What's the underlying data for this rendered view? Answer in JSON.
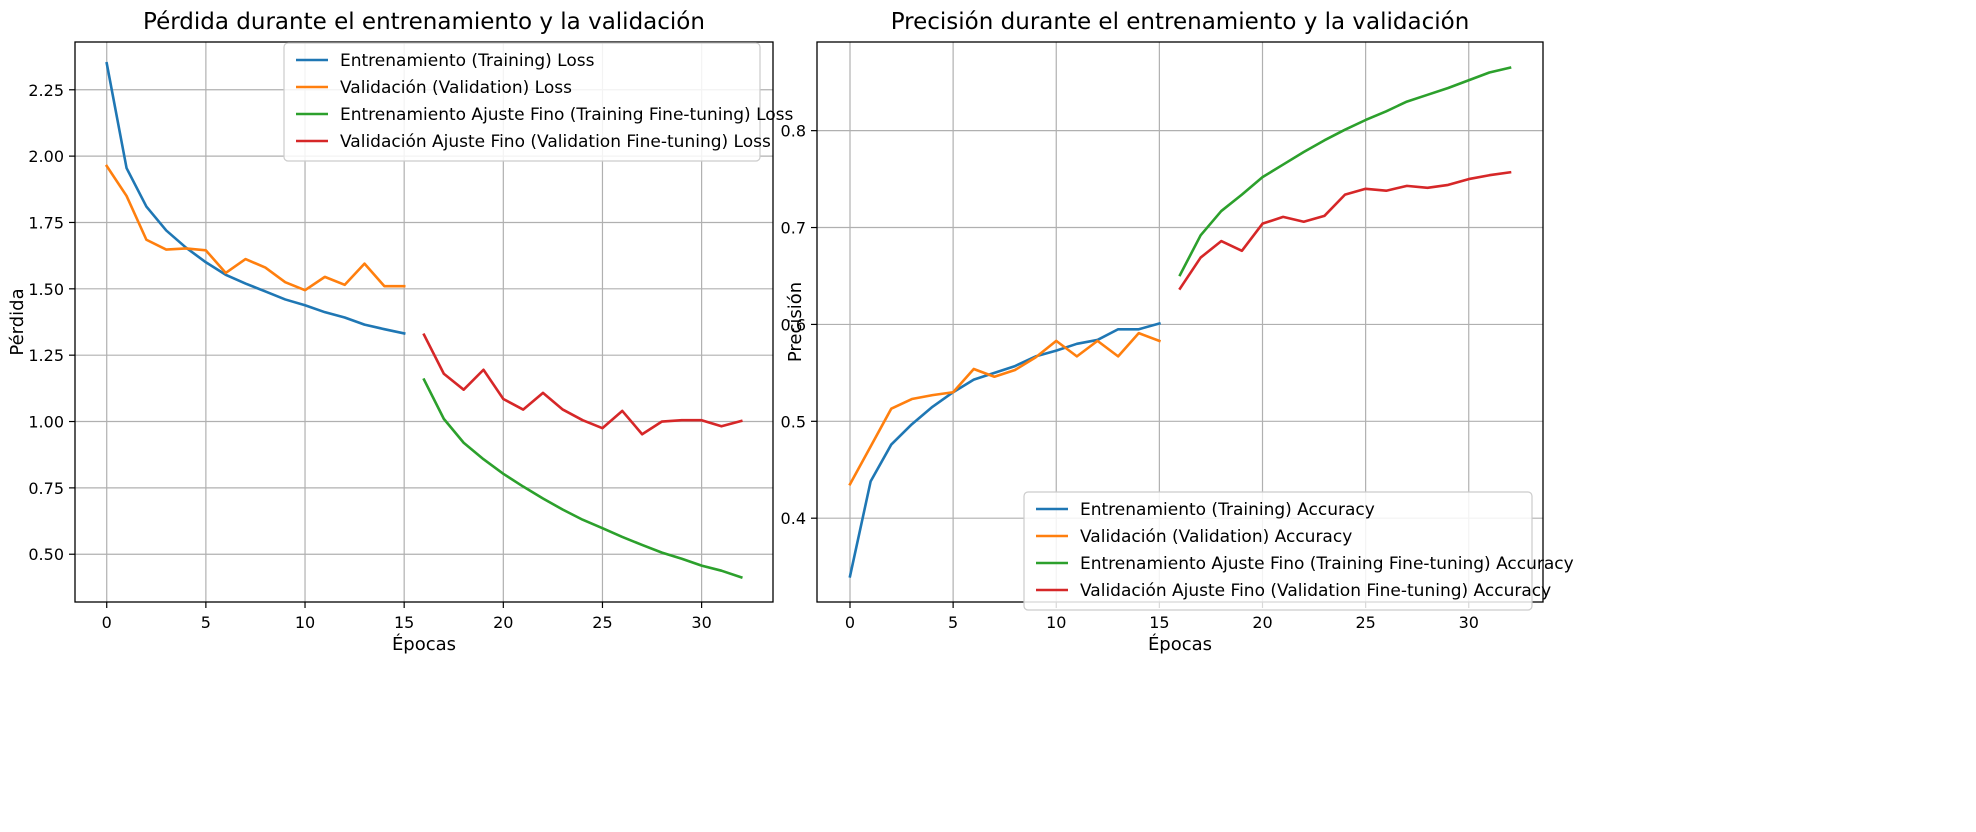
{
  "chart_data": [
    {
      "type": "line",
      "title": "Pérdida durante el entrenamiento y la validación",
      "xlabel": "Épocas",
      "ylabel": "Pérdida",
      "xlim": [
        -1.6,
        33.6
      ],
      "ylim": [
        0.32,
        2.43
      ],
      "xticks": [
        0,
        5,
        10,
        15,
        20,
        25,
        30
      ],
      "yticks": [
        0.5,
        0.75,
        1.0,
        1.25,
        1.5,
        1.75,
        2.0,
        2.25
      ],
      "ytick_labels": [
        "0.50",
        "0.75",
        "1.00",
        "1.25",
        "1.50",
        "1.75",
        "2.00",
        "2.25"
      ],
      "grid": true,
      "legend_position": "top-right",
      "series": [
        {
          "name": "Entrenamiento (Training) Loss",
          "color": "#1f77b4",
          "x": [
            0,
            1,
            2,
            3,
            4,
            5,
            6,
            7,
            8,
            9,
            10,
            11,
            12,
            13,
            14,
            15
          ],
          "y": [
            2.35,
            1.955,
            1.81,
            1.72,
            1.655,
            1.6,
            1.553,
            1.52,
            1.49,
            1.46,
            1.438,
            1.412,
            1.392,
            1.365,
            1.348,
            1.332
          ]
        },
        {
          "name": "Validación (Validation) Loss",
          "color": "#ff7f0e",
          "x": [
            0,
            1,
            2,
            3,
            4,
            5,
            6,
            7,
            8,
            9,
            10,
            11,
            12,
            13,
            14,
            15
          ],
          "y": [
            1.963,
            1.85,
            1.685,
            1.648,
            1.652,
            1.645,
            1.56,
            1.612,
            1.58,
            1.525,
            1.495,
            1.545,
            1.515,
            1.595,
            1.51,
            1.51
          ]
        },
        {
          "name": "Entrenamiento Ajuste Fino (Training Fine-tuning) Loss",
          "color": "#2ca02c",
          "x": [
            16,
            17,
            18,
            19,
            20,
            21,
            22,
            23,
            24,
            25,
            26,
            27,
            28,
            29,
            30,
            31,
            32
          ],
          "y": [
            1.158,
            1.01,
            0.92,
            0.858,
            0.803,
            0.755,
            0.71,
            0.668,
            0.63,
            0.598,
            0.565,
            0.535,
            0.506,
            0.483,
            0.457,
            0.438,
            0.413
          ]
        },
        {
          "name": "Validación Ajuste Fino (Validation Fine-tuning) Loss",
          "color": "#d62728",
          "x": [
            16,
            17,
            18,
            19,
            20,
            21,
            22,
            23,
            24,
            25,
            26,
            27,
            28,
            29,
            30,
            31,
            32
          ],
          "y": [
            1.327,
            1.18,
            1.12,
            1.195,
            1.085,
            1.045,
            1.108,
            1.045,
            1.005,
            0.975,
            1.04,
            0.952,
            1.0,
            1.005,
            1.005,
            0.982,
            1.002
          ]
        }
      ]
    },
    {
      "type": "line",
      "title": "Precisión durante el entrenamiento y la validación",
      "xlabel": "Épocas",
      "ylabel": "Precisión",
      "xlim": [
        -1.6,
        33.6
      ],
      "ylim": [
        0.3135,
        0.8915
      ],
      "xticks": [
        0,
        5,
        10,
        15,
        20,
        25,
        30
      ],
      "yticks": [
        0.4,
        0.5,
        0.6,
        0.7,
        0.8
      ],
      "ytick_labels": [
        "0.4",
        "0.5",
        "0.6",
        "0.7",
        "0.8"
      ],
      "grid": true,
      "legend_position": "bottom-right",
      "series": [
        {
          "name": "Entrenamiento (Training) Accuracy",
          "color": "#1f77b4",
          "x": [
            0,
            1,
            2,
            3,
            4,
            5,
            6,
            7,
            8,
            9,
            10,
            11,
            12,
            13,
            14,
            15
          ],
          "y": [
            0.34,
            0.438,
            0.476,
            0.497,
            0.515,
            0.53,
            0.543,
            0.55,
            0.557,
            0.567,
            0.573,
            0.58,
            0.584,
            0.595,
            0.595,
            0.601
          ]
        },
        {
          "name": "Validación (Validation) Accuracy",
          "color": "#ff7f0e",
          "x": [
            0,
            1,
            2,
            3,
            4,
            5,
            6,
            7,
            8,
            9,
            10,
            11,
            12,
            13,
            14,
            15
          ],
          "y": [
            0.435,
            0.474,
            0.513,
            0.523,
            0.527,
            0.53,
            0.554,
            0.546,
            0.553,
            0.566,
            0.583,
            0.567,
            0.583,
            0.567,
            0.591,
            0.583
          ]
        },
        {
          "name": "Entrenamiento Ajuste Fino (Training Fine-tuning) Accuracy",
          "color": "#2ca02c",
          "x": [
            16,
            17,
            18,
            19,
            20,
            21,
            22,
            23,
            24,
            25,
            26,
            27,
            28,
            29,
            30,
            31,
            32
          ],
          "y": [
            0.651,
            0.692,
            0.717,
            0.734,
            0.752,
            0.765,
            0.778,
            0.79,
            0.801,
            0.811,
            0.82,
            0.83,
            0.837,
            0.844,
            0.852,
            0.86,
            0.865
          ]
        },
        {
          "name": "Validación Ajuste Fino (Validation Fine-tuning) Accuracy",
          "color": "#d62728",
          "x": [
            16,
            17,
            18,
            19,
            20,
            21,
            22,
            23,
            24,
            25,
            26,
            27,
            28,
            29,
            30,
            31,
            32
          ],
          "y": [
            0.637,
            0.669,
            0.686,
            0.676,
            0.704,
            0.711,
            0.706,
            0.712,
            0.734,
            0.74,
            0.738,
            0.743,
            0.741,
            0.744,
            0.75,
            0.754,
            0.757
          ]
        }
      ]
    }
  ]
}
